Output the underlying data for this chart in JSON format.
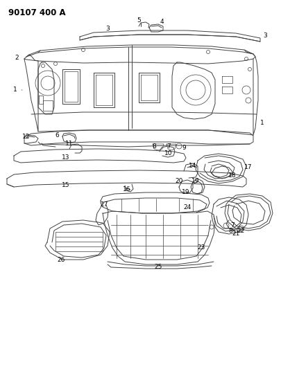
{
  "title": "90107 400 A",
  "bg_color": "#ffffff",
  "line_color": "#404040",
  "label_color": "#000000",
  "title_fontsize": 8.5,
  "label_fontsize": 6.5
}
